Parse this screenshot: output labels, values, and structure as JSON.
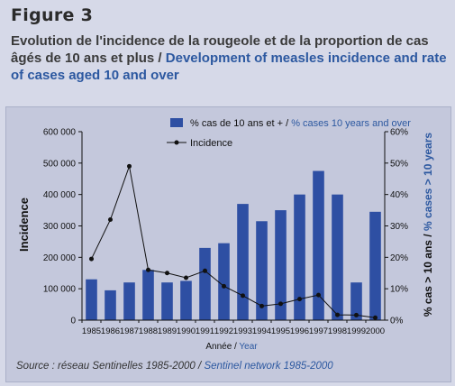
{
  "figure_label": "Figure 3",
  "caption": {
    "fr": "Evolution de l'incidence de la rougeole et de la proportion de cas âgés de 10 ans et plus",
    "sep": " / ",
    "en": "Development of measles incidence and rate of cases aged 10 and over"
  },
  "source": {
    "fr": "Source : réseau Sentinelles 1985-2000",
    "sep": " / ",
    "en": "Sentinel network 1985-2000"
  },
  "colors": {
    "bar": "#2e4fa3",
    "line": "#111111",
    "accent_text": "#2c58a0",
    "plot_bg": "#c4c8dc"
  },
  "chart_data": {
    "type": "bar",
    "title": "",
    "categories": [
      "1985",
      "1986",
      "1987",
      "1988",
      "1989",
      "1990",
      "1991",
      "1992",
      "1993",
      "1994",
      "1995",
      "1996",
      "1997",
      "1998",
      "1999",
      "2000"
    ],
    "xlabel": {
      "fr": "Année",
      "sep": " / ",
      "en": "Year"
    },
    "ylabel_left": "Incidence",
    "ylabel_right": {
      "fr": "% cas > 10 ans",
      "sep": " / ",
      "en": "% cases > 10 years"
    },
    "y_left": {
      "ylim": [
        0,
        600000
      ],
      "ticks": [
        0,
        100000,
        200000,
        300000,
        400000,
        500000,
        600000
      ],
      "tick_labels": [
        "0",
        "100 000",
        "200 000",
        "300 000",
        "400 000",
        "500 000",
        "600 000"
      ]
    },
    "y_right": {
      "ylim": [
        0,
        60
      ],
      "ticks": [
        0,
        10,
        20,
        30,
        40,
        50,
        60
      ],
      "tick_labels": [
        "0%",
        "10%",
        "20%",
        "30%",
        "40%",
        "50%",
        "60%"
      ]
    },
    "legend_position": "top-right",
    "grid": false,
    "series": [
      {
        "name": {
          "fr": "% cas de 10 ans et +",
          "sep": " / ",
          "en": "% cases 10 years and over"
        },
        "type": "bar",
        "axis": "right",
        "values": [
          13,
          9.5,
          12,
          16,
          12,
          12.5,
          23,
          24.5,
          37,
          31.5,
          35,
          40,
          47.5,
          40,
          12,
          34.5
        ]
      },
      {
        "name": "Incidence",
        "type": "line",
        "axis": "left",
        "values": [
          195000,
          320000,
          490000,
          160000,
          150000,
          135000,
          157000,
          108000,
          78000,
          45000,
          52000,
          67000,
          80000,
          17000,
          16000,
          8000
        ]
      }
    ]
  }
}
